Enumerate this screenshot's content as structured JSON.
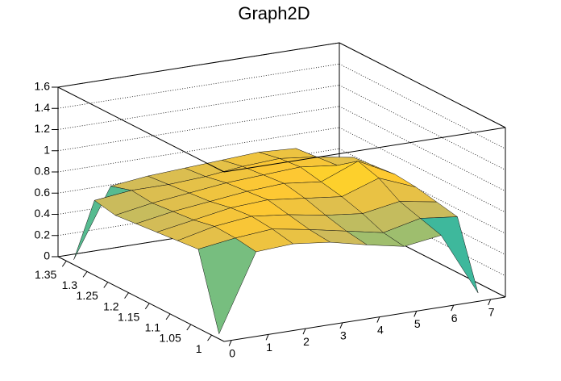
{
  "chart_data": {
    "type": "surface",
    "title": "Graph2D",
    "x": [
      0,
      1,
      2,
      3,
      4,
      5,
      6,
      7
    ],
    "y": [
      1,
      1.05,
      1.1,
      1.15,
      1.2,
      1.25,
      1.3,
      1.35
    ],
    "z": [
      [
        0,
        0.72,
        0.74,
        0.7,
        0.62,
        0.55,
        0.6,
        0
      ],
      [
        0.7,
        0.75,
        0.78,
        0.72,
        0.65,
        0.58,
        0.66,
        0.62
      ],
      [
        0.68,
        0.76,
        0.8,
        0.76,
        0.7,
        0.66,
        0.72,
        0.66
      ],
      [
        0.66,
        0.72,
        0.78,
        0.8,
        0.76,
        0.72,
        0.84,
        0.7
      ],
      [
        0.64,
        0.7,
        0.74,
        0.78,
        0.8,
        0.76,
        0.9,
        0.72
      ],
      [
        0.62,
        0.68,
        0.72,
        0.76,
        0.78,
        0.8,
        0.76,
        0.7
      ],
      [
        0.66,
        0.7,
        0.7,
        0.72,
        0.76,
        0.78,
        0.74,
        0.68
      ],
      [
        0,
        0.64,
        0.68,
        0.7,
        0.72,
        0.74,
        0.72,
        0
      ]
    ],
    "xlim": [
      -0.2,
      7.4
    ],
    "ylim": [
      0.97,
      1.37
    ],
    "zlim": [
      0,
      1.6
    ],
    "xticks": [
      0,
      1,
      2,
      3,
      4,
      5,
      6,
      7
    ],
    "yticks": [
      1,
      1.05,
      1.1,
      1.15,
      1.2,
      1.25,
      1.3,
      1.35
    ],
    "zticks": [
      0,
      0.2,
      0.4,
      0.6,
      0.8,
      1,
      1.2,
      1.4,
      1.6
    ],
    "grid": true,
    "palette": [
      "#352a87",
      "#0f5cdd",
      "#1481d6",
      "#06a4ca",
      "#2eb7a4",
      "#87bf77",
      "#d1bb59",
      "#fec832",
      "#f9fb0e"
    ]
  }
}
